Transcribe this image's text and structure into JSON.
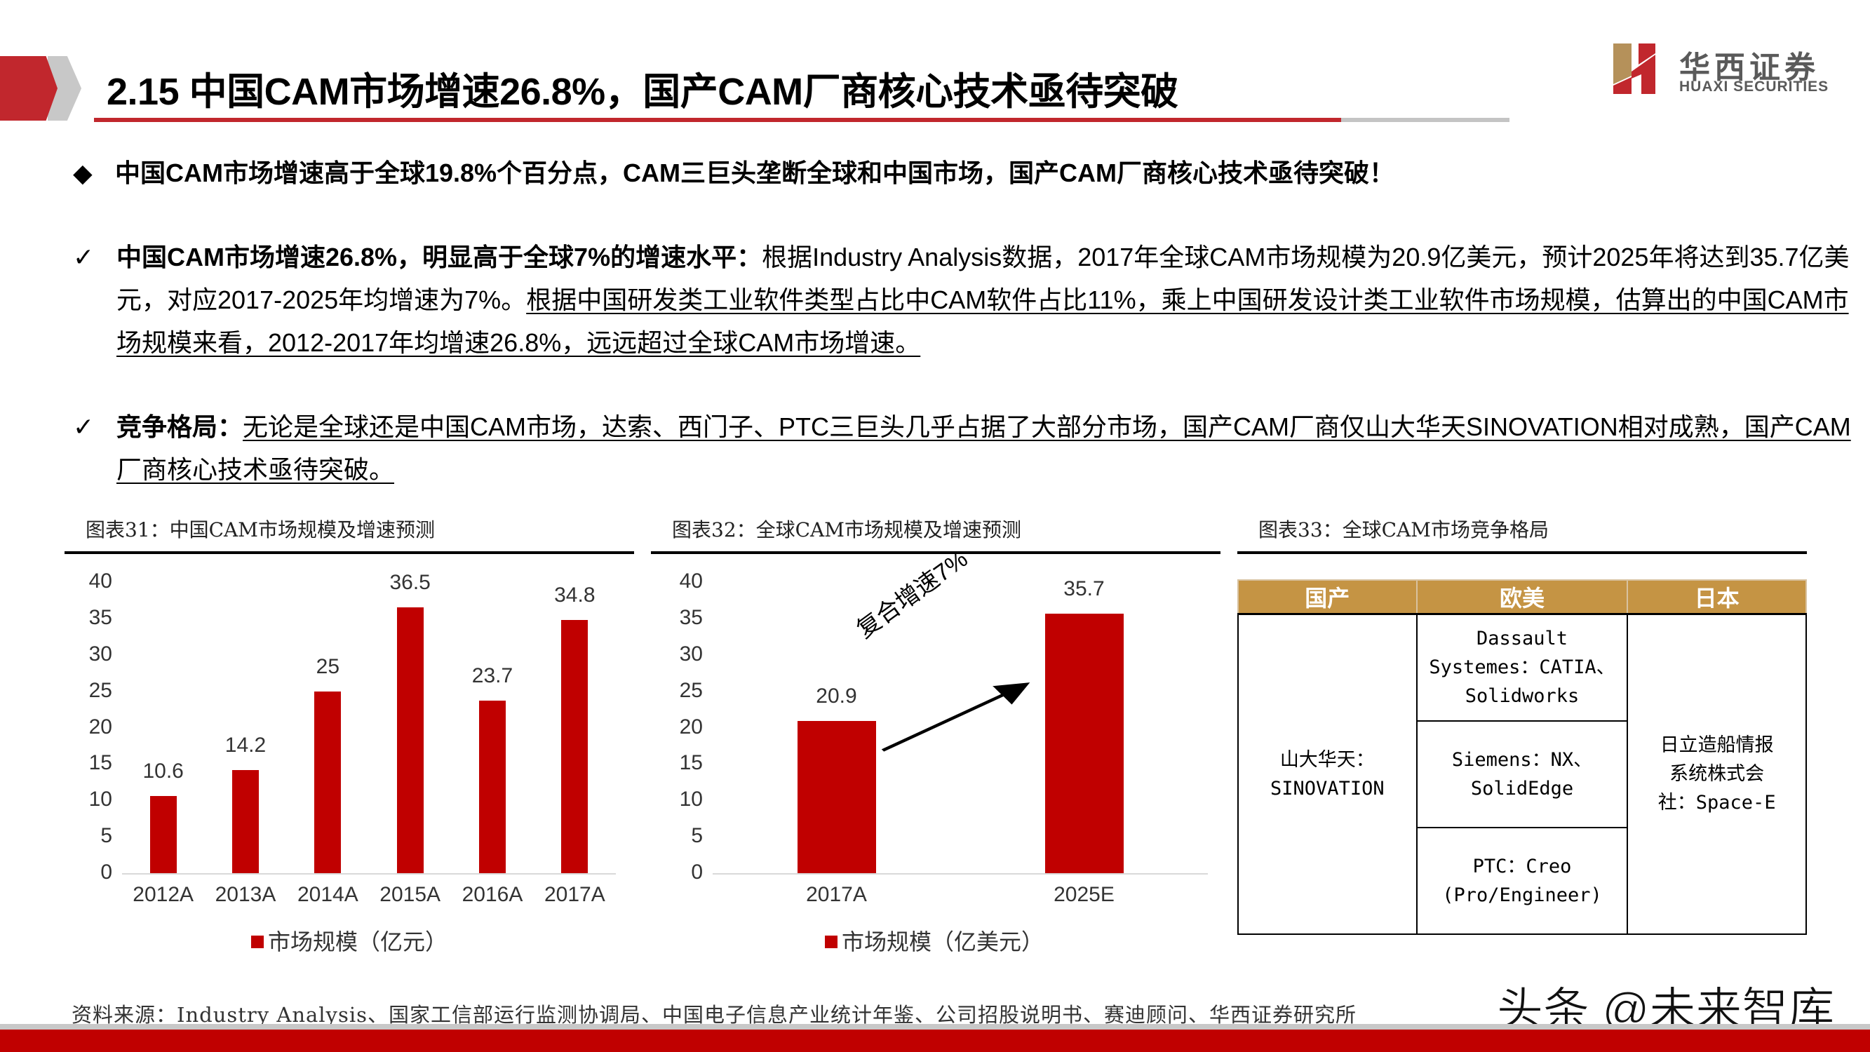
{
  "header": {
    "title": "2.15 中国CAM市场增速26.8%，国产CAM厂商核心技术亟待突破",
    "logo_cn": "华西证券",
    "logo_en": "HUAXI SECURITIES",
    "accent_color": "#c1272d"
  },
  "lead": {
    "bullet_icon": "◆",
    "text": "中国CAM市场增速高于全球19.8%个百分点，CAM三巨头垄断全球和中国市场，国产CAM厂商核心技术亟待突破！"
  },
  "points": [
    {
      "check_icon": "✓",
      "bold": "中国CAM市场增速26.8%，明显高于全球7%的增速水平：",
      "plain": "根据Industry  Analysis数据，2017年全球CAM市场规模为20.9亿美元，预计2025年将达到35.7亿美元，对应2017-2025年均增速为7%。",
      "underlined": "根据中国研发类工业软件类型占比中CAM软件占比11%，乘上中国研发设计类工业软件市场规模，估算出的中国CAM市场规模来看，2012-2017年均增速26.8%，远远超过全球CAM市场增速。"
    },
    {
      "check_icon": "✓",
      "bold": "竞争格局：",
      "plain": "",
      "underlined": "无论是全球还是中国CAM市场，达索、西门子、PTC三巨头几乎占据了大部分市场，国产CAM厂商仅山大华天SINOVATION相对成熟，国产CAM厂商核心技术亟待突破。"
    }
  ],
  "chart_data": [
    {
      "type": "bar",
      "title": "图表31：中国CAM市场规模及增速预测",
      "categories": [
        "2012A",
        "2013A",
        "2014A",
        "2015A",
        "2016A",
        "2017A"
      ],
      "values": [
        10.6,
        14.2,
        25,
        36.5,
        23.7,
        34.8
      ],
      "value_labels": [
        "10.6",
        "14.2",
        "25",
        "36.5",
        "23.7",
        "34.8"
      ],
      "series": [
        {
          "name": "市场规模（亿元）",
          "values": [
            10.6,
            14.2,
            25,
            36.5,
            23.7,
            34.8
          ]
        }
      ],
      "yticks": [
        "0",
        "5",
        "10",
        "15",
        "20",
        "25",
        "30",
        "35",
        "40"
      ],
      "ylim": [
        0,
        40
      ],
      "xlabel": "",
      "ylabel": "",
      "legend": "市场规模（亿元）",
      "legend_position": "bottom",
      "grid": false,
      "bar_color": "#c00000"
    },
    {
      "type": "bar",
      "title": "图表32：全球CAM市场规模及增速预测",
      "categories": [
        "2017A",
        "2025E"
      ],
      "values": [
        20.9,
        35.7
      ],
      "value_labels": [
        "20.9",
        "35.7"
      ],
      "series": [
        {
          "name": "市场规模（亿美元）",
          "values": [
            20.9,
            35.7
          ]
        }
      ],
      "yticks": [
        "0",
        "5",
        "10",
        "15",
        "20",
        "25",
        "30",
        "35",
        "40"
      ],
      "ylim": [
        0,
        40
      ],
      "annotation": "复合增速7%",
      "xlabel": "",
      "ylabel": "",
      "legend": "市场规模（亿美元）",
      "legend_position": "bottom",
      "grid": false,
      "bar_color": "#c00000"
    },
    {
      "type": "table",
      "title": "图表33：全球CAM市场竞争格局",
      "columns": [
        "国产",
        "欧美",
        "日本"
      ],
      "domestic": [
        "山大华天：",
        "SINOVATION"
      ],
      "western": [
        [
          "Dassault",
          "Systemes：CATIA、",
          "Solidworks"
        ],
        [
          "Siemens：NX、",
          "SolidEdge"
        ],
        [
          "PTC：Creo",
          "(Pro/Engineer)"
        ]
      ],
      "japan": [
        "日立造船情报",
        "系统株式会",
        "社：Space-E"
      ],
      "header_color": "#c59444"
    }
  ],
  "footer": {
    "source": "资料来源：Industry Analysis、国家工信部运行监测协调局、中国电子信息产业统计年鉴、公司招股说明书、赛迪顾问、华西证券研究所",
    "watermark": "头条 @未来智库"
  }
}
